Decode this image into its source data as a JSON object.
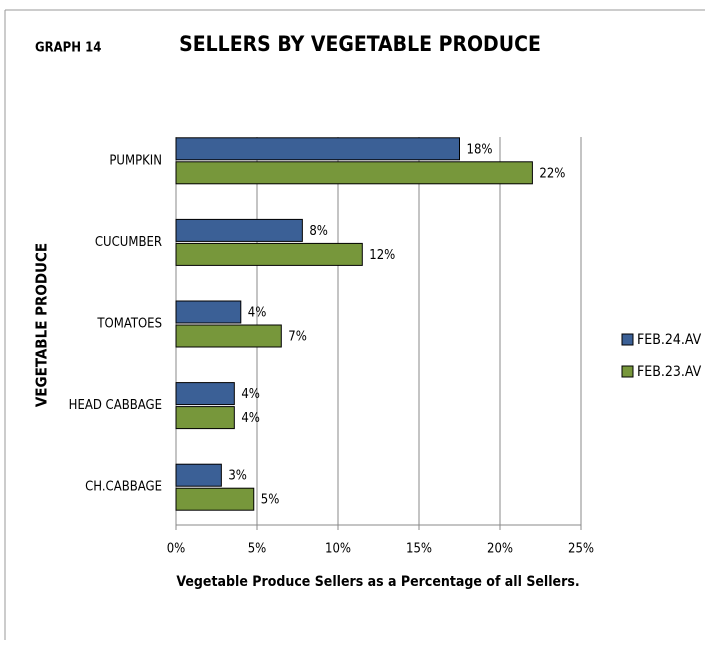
{
  "graph_label": "GRAPH 14",
  "chart_data": {
    "type": "hbar",
    "title": "SELLERS BY VEGETABLE PRODUCE",
    "x_label": "Vegetable Produce Sellers as a Percentage of all Sellers.",
    "y_label": "VEGETABLE PRODUCE",
    "categories": [
      "PUMPKIN",
      "CUCUMBER",
      "TOMATOES",
      "HEAD CABBAGE",
      "CH.CABBAGE"
    ],
    "series": [
      {
        "name": "FEB.24.AV",
        "color": "#3b6096",
        "values": [
          17.5,
          7.8,
          4.0,
          3.6,
          2.8
        ],
        "value_labels": [
          "18%",
          "8%",
          "4%",
          "4%",
          "3%"
        ]
      },
      {
        "name": "FEB.23.AV",
        "color": "#77973b",
        "values": [
          22.0,
          11.5,
          6.5,
          3.6,
          4.8
        ],
        "value_labels": [
          "22%",
          "12%",
          "7%",
          "4%",
          "5%"
        ]
      }
    ],
    "xlim": [
      0,
      25
    ],
    "xticks": [
      {
        "value": 0,
        "label": "0%"
      },
      {
        "value": 5,
        "label": "5%"
      },
      {
        "value": 10,
        "label": "10%"
      },
      {
        "value": 15,
        "label": "15%"
      },
      {
        "value": 20,
        "label": "20%"
      },
      {
        "value": 25,
        "label": "25%"
      }
    ],
    "grid": true,
    "legend": "right"
  }
}
